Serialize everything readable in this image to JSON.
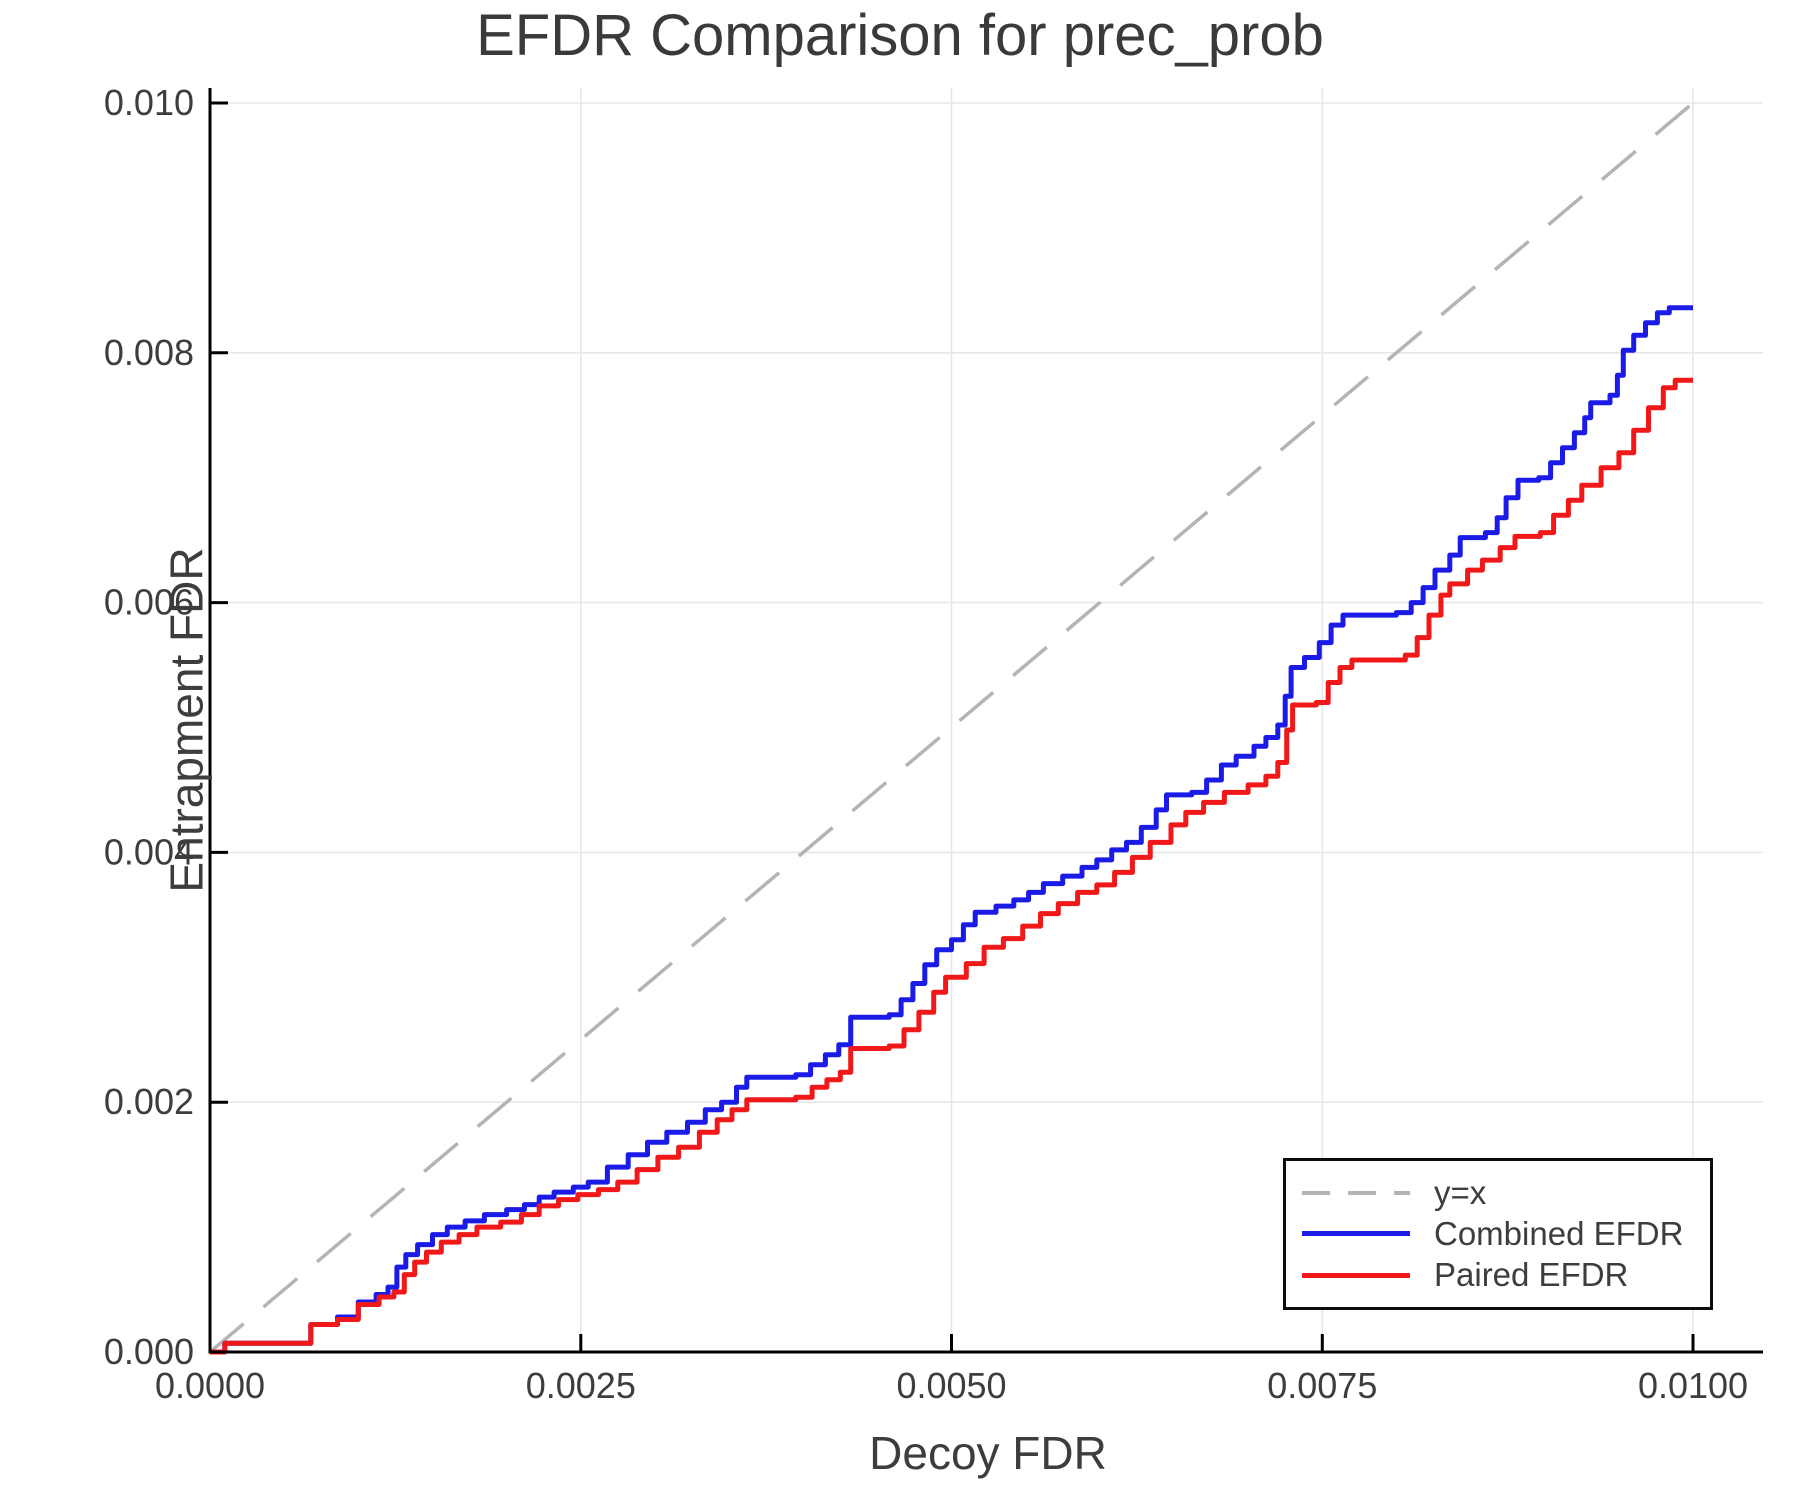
{
  "title": "EFDR Comparison for prec_prob",
  "axes": {
    "xlabel": "Decoy FDR",
    "ylabel": "Entrapment FDR",
    "x_ticks": [
      {
        "value": 0.0,
        "label": "0.0000"
      },
      {
        "value": 0.0025,
        "label": "0.0025"
      },
      {
        "value": 0.005,
        "label": "0.0050"
      },
      {
        "value": 0.0075,
        "label": "0.0075"
      },
      {
        "value": 0.01,
        "label": "0.0100"
      }
    ],
    "y_ticks": [
      {
        "value": 0.0,
        "label": "0.000"
      },
      {
        "value": 0.002,
        "label": "0.002"
      },
      {
        "value": 0.004,
        "label": "0.004"
      },
      {
        "value": 0.006,
        "label": "0.006"
      },
      {
        "value": 0.008,
        "label": "0.008"
      },
      {
        "value": 0.01,
        "label": "0.010"
      }
    ],
    "xlim": [
      0,
      0.010472
    ],
    "ylim": [
      0,
      0.01012
    ],
    "grid": true,
    "grid_color": "#e7e7e7",
    "spine_color": "#000000",
    "tick_label_color": "#3d3d3d"
  },
  "legend": {
    "position": "lower right",
    "items": [
      {
        "label": "y=x",
        "color": "#b4b4b4",
        "dashed": true
      },
      {
        "label": "Combined EFDR",
        "color": "#1b1be8",
        "dashed": false
      },
      {
        "label": "Paired EFDR",
        "color": "#f01818",
        "dashed": false
      }
    ]
  },
  "chart_data": {
    "type": "line",
    "title": "EFDR Comparison for prec_prob",
    "xlabel": "Decoy FDR",
    "ylabel": "Entrapment FDR",
    "xlim": [
      0,
      0.010472
    ],
    "ylim": [
      0,
      0.01012
    ],
    "grid": true,
    "legend_position": "lower right",
    "series": [
      {
        "name": "y=x",
        "color": "#b4b4b4",
        "style": "dashed",
        "step": false,
        "width": 3.5,
        "x": [
          0,
          0.01
        ],
        "y": [
          0,
          0.01
        ]
      },
      {
        "name": "Combined EFDR",
        "color": "#1b1be8",
        "style": "solid",
        "step": true,
        "width": 5,
        "x": [
          0,
          0.0001,
          0.00068,
          0.00086,
          0.001,
          0.00112,
          0.0012,
          0.00126,
          0.00132,
          0.0014,
          0.0015,
          0.0016,
          0.00172,
          0.00185,
          0.002,
          0.00212,
          0.00222,
          0.00232,
          0.00245,
          0.00255,
          0.00268,
          0.00282,
          0.00295,
          0.00308,
          0.00322,
          0.00334,
          0.00345,
          0.00355,
          0.00362,
          0.00395,
          0.00405,
          0.00415,
          0.00424,
          0.00432,
          0.00458,
          0.00466,
          0.00474,
          0.00482,
          0.0049,
          0.005,
          0.00508,
          0.00516,
          0.0053,
          0.00542,
          0.00552,
          0.00562,
          0.00575,
          0.00588,
          0.00598,
          0.00608,
          0.00618,
          0.00628,
          0.00638,
          0.00645,
          0.00662,
          0.00672,
          0.00682,
          0.00692,
          0.00704,
          0.00712,
          0.0072,
          0.00725,
          0.00729,
          0.00738,
          0.00748,
          0.00756,
          0.00764,
          0.008,
          0.0081,
          0.00818,
          0.00826,
          0.00836,
          0.00843,
          0.0086,
          0.00868,
          0.00874,
          0.00882,
          0.00896,
          0.00904,
          0.00912,
          0.0092,
          0.00927,
          0.00931,
          0.00944,
          0.00949,
          0.00953,
          0.0096,
          0.00968,
          0.00976,
          0.00984,
          0.01
        ],
        "y": [
          0,
          7e-05,
          0.00022,
          0.00028,
          0.0004,
          0.00046,
          0.00052,
          0.00068,
          0.00078,
          0.00086,
          0.00094,
          0.001,
          0.00105,
          0.0011,
          0.00114,
          0.00118,
          0.00124,
          0.00128,
          0.00132,
          0.00136,
          0.00148,
          0.00158,
          0.00168,
          0.00176,
          0.00184,
          0.00194,
          0.002,
          0.00212,
          0.0022,
          0.00222,
          0.0023,
          0.00238,
          0.00246,
          0.00268,
          0.0027,
          0.00282,
          0.00295,
          0.0031,
          0.00322,
          0.0033,
          0.00342,
          0.00352,
          0.00357,
          0.00362,
          0.00368,
          0.00375,
          0.00381,
          0.00388,
          0.00394,
          0.00402,
          0.00408,
          0.0042,
          0.00434,
          0.00446,
          0.00448,
          0.00458,
          0.0047,
          0.00477,
          0.00485,
          0.00492,
          0.00502,
          0.00525,
          0.00548,
          0.00556,
          0.00568,
          0.00582,
          0.0059,
          0.00592,
          0.006,
          0.00612,
          0.00626,
          0.00638,
          0.00652,
          0.00656,
          0.00668,
          0.00684,
          0.00698,
          0.007,
          0.00712,
          0.00724,
          0.00736,
          0.00748,
          0.0076,
          0.00766,
          0.00782,
          0.00802,
          0.00814,
          0.00824,
          0.00832,
          0.00836,
          0.00836
        ]
      },
      {
        "name": "Paired EFDR",
        "color": "#f01818",
        "style": "solid",
        "step": true,
        "width": 5,
        "x": [
          0,
          0.0001,
          0.00068,
          0.00086,
          0.001,
          0.00114,
          0.00124,
          0.00131,
          0.00138,
          0.00146,
          0.00156,
          0.00168,
          0.0018,
          0.00196,
          0.0021,
          0.00222,
          0.00235,
          0.00248,
          0.00262,
          0.00275,
          0.00288,
          0.00302,
          0.00316,
          0.0033,
          0.00342,
          0.00352,
          0.00362,
          0.00395,
          0.00406,
          0.00416,
          0.00425,
          0.00432,
          0.00458,
          0.00468,
          0.00478,
          0.00488,
          0.00496,
          0.0051,
          0.00522,
          0.00535,
          0.00548,
          0.0056,
          0.00572,
          0.00585,
          0.00598,
          0.0061,
          0.00622,
          0.00634,
          0.00648,
          0.00658,
          0.0067,
          0.00684,
          0.007,
          0.00712,
          0.0072,
          0.00726,
          0.0073,
          0.00746,
          0.00754,
          0.00762,
          0.0077,
          0.00806,
          0.00814,
          0.00822,
          0.0083,
          0.00836,
          0.00848,
          0.00858,
          0.0087,
          0.0088,
          0.00897,
          0.00906,
          0.00916,
          0.00925,
          0.00938,
          0.0095,
          0.0096,
          0.0097,
          0.0098,
          0.00988,
          0.01
        ],
        "y": [
          0,
          7e-05,
          0.00022,
          0.00026,
          0.00038,
          0.00044,
          0.00048,
          0.00062,
          0.00072,
          0.0008,
          0.00088,
          0.00094,
          0.001,
          0.00104,
          0.0011,
          0.00117,
          0.00122,
          0.00126,
          0.0013,
          0.00136,
          0.00146,
          0.00156,
          0.00164,
          0.00176,
          0.00186,
          0.00194,
          0.00202,
          0.00204,
          0.00212,
          0.00218,
          0.00224,
          0.00243,
          0.00245,
          0.00258,
          0.00272,
          0.00288,
          0.003,
          0.00311,
          0.00324,
          0.00331,
          0.00341,
          0.00351,
          0.00359,
          0.00368,
          0.00374,
          0.00384,
          0.00396,
          0.00408,
          0.00422,
          0.00432,
          0.0044,
          0.00448,
          0.00454,
          0.00461,
          0.00472,
          0.00498,
          0.00518,
          0.0052,
          0.00536,
          0.00548,
          0.00554,
          0.00558,
          0.00572,
          0.0059,
          0.00606,
          0.00615,
          0.00626,
          0.00634,
          0.00644,
          0.00653,
          0.00656,
          0.0067,
          0.00682,
          0.00694,
          0.00708,
          0.0072,
          0.00738,
          0.00756,
          0.00772,
          0.00778,
          0.00778
        ]
      }
    ]
  }
}
